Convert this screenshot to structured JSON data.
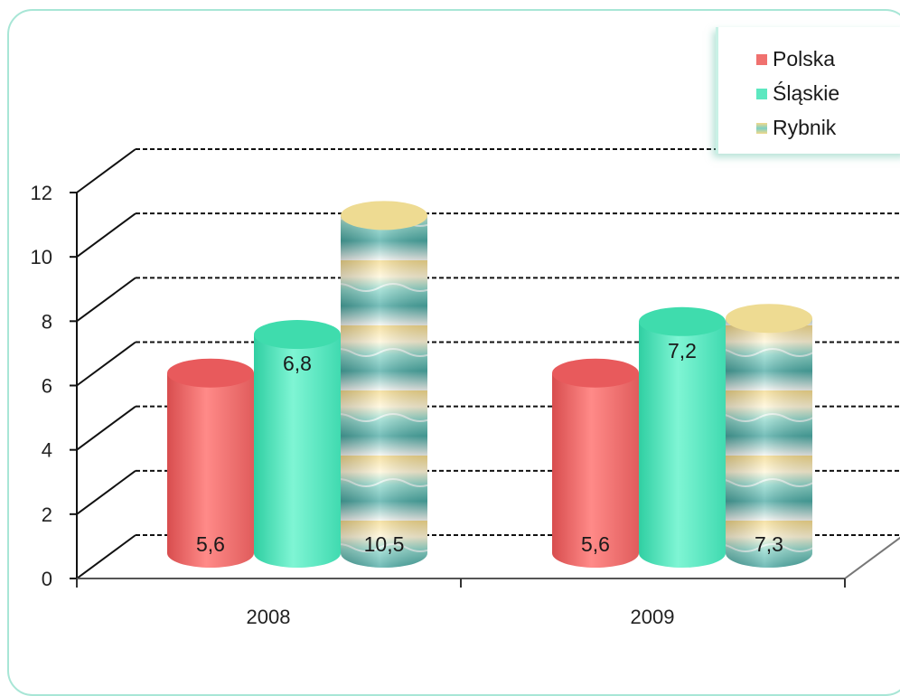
{
  "chart_data": {
    "type": "bar",
    "categories": [
      "2008",
      "2009"
    ],
    "series": [
      {
        "name": "Polska",
        "values": [
          5.6,
          5.6
        ],
        "labels": [
          "5,6",
          "5,6"
        ]
      },
      {
        "name": "Śląskie",
        "values": [
          6.8,
          7.2
        ],
        "labels": [
          "6,8",
          "7,2"
        ]
      },
      {
        "name": "Rybnik",
        "values": [
          10.5,
          7.3
        ],
        "labels": [
          "10,5",
          "7,3"
        ]
      }
    ],
    "yticks": [
      "0",
      "2",
      "4",
      "6",
      "8",
      "10",
      "12"
    ],
    "ylim": [
      0,
      12
    ],
    "grid": true,
    "legend_position": "top-right"
  },
  "colors": {
    "polska": "#f0716f",
    "slaskie": "#5de8c0",
    "rybnik": "#bfe3dc"
  }
}
